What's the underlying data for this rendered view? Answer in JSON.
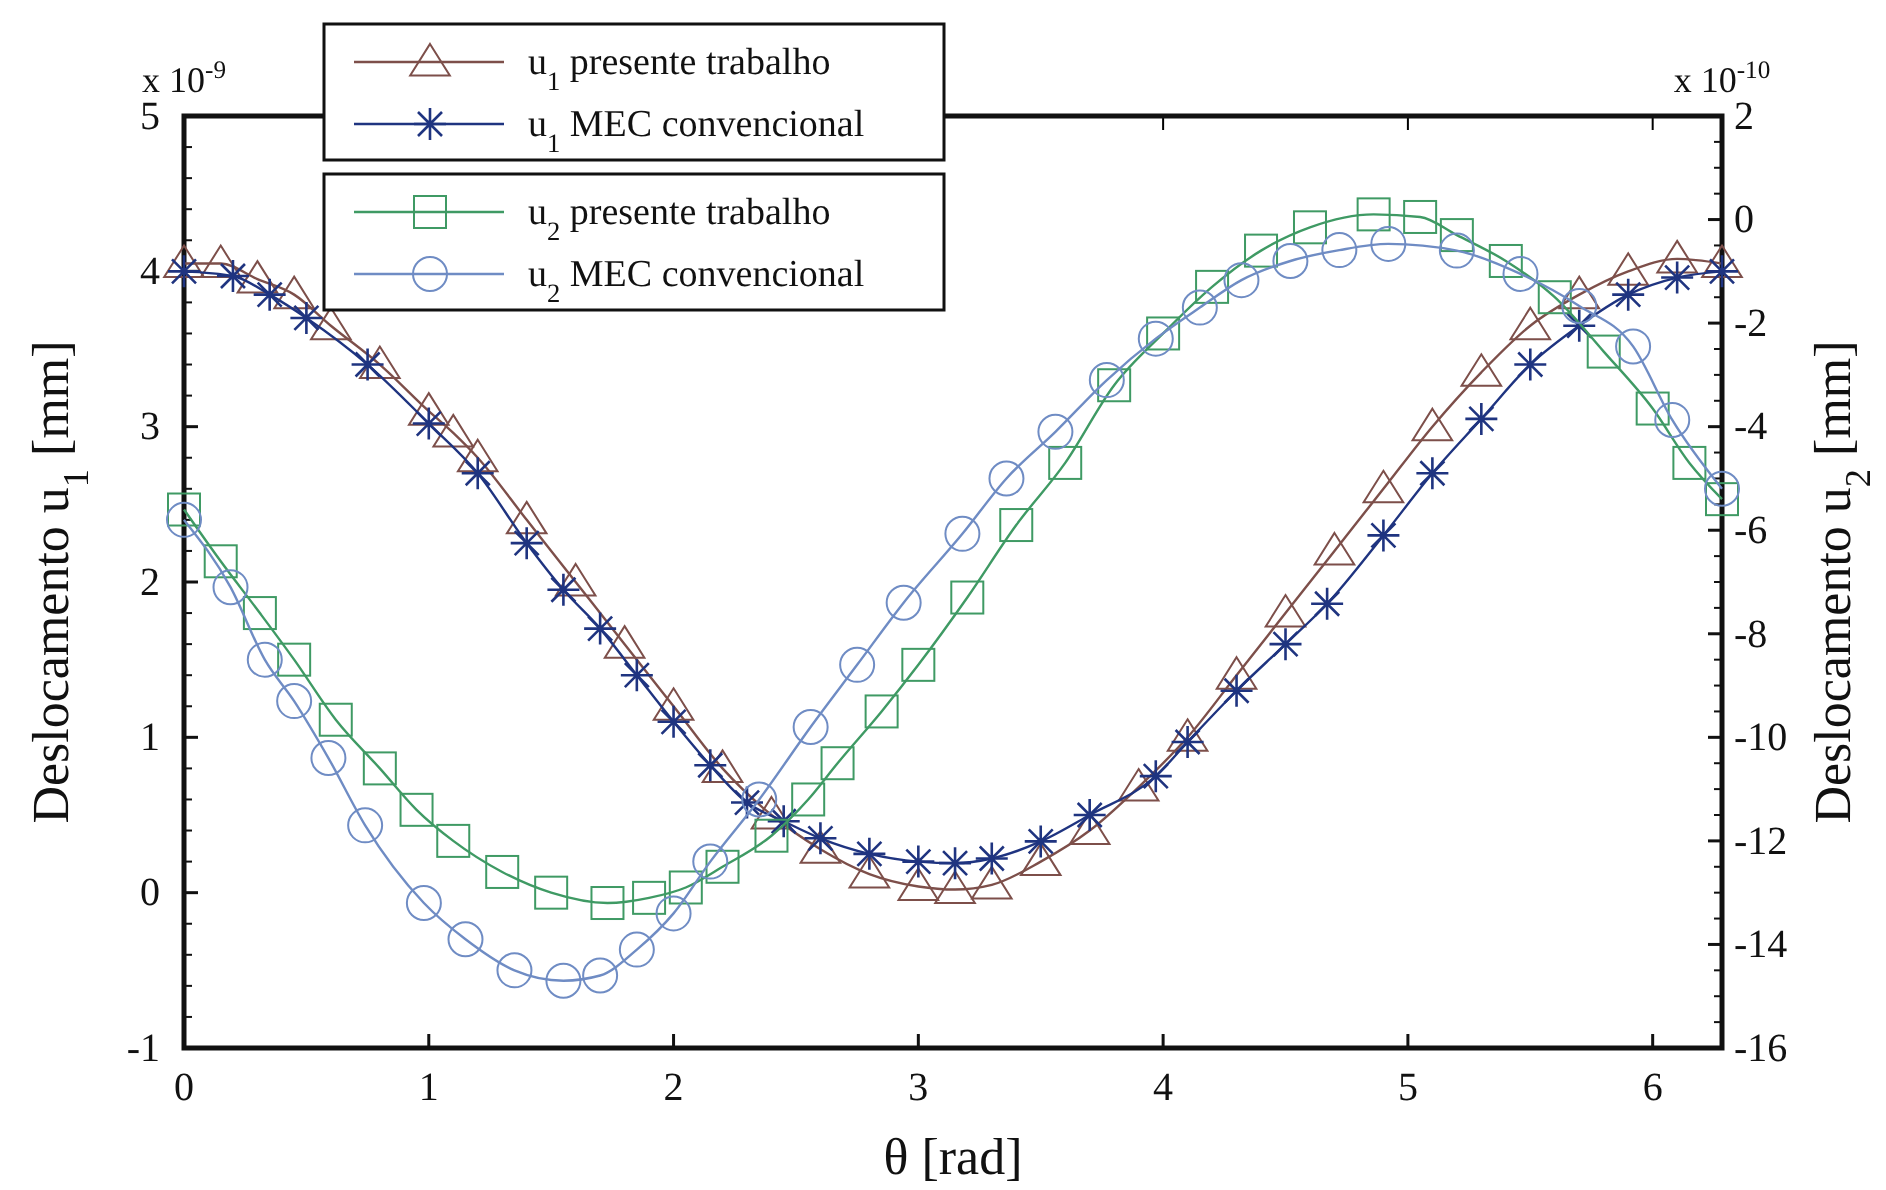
{
  "chart_data": {
    "type": "line",
    "xlabel": "θ [rad]",
    "ylabel": "Deslocamento u$_{1}$ [mm]",
    "y2label": "Deslocamento u$_{2}$ [mm]",
    "annotations": [
      "x 10$^{-9}$",
      "x 10$^{-10}$"
    ],
    "xlim": [
      0,
      6.2832
    ],
    "xticks": [
      0,
      1,
      2,
      3,
      4,
      5,
      6
    ],
    "ylim": [
      -1,
      5
    ],
    "yticks": [
      -1,
      0,
      1,
      2,
      3,
      4,
      5
    ],
    "y2lim": [
      -16,
      2
    ],
    "y2ticks": [
      -16,
      -14,
      -12,
      -10,
      -8,
      -6,
      -4,
      -2,
      0,
      2
    ],
    "legend": "top left",
    "grid": false,
    "line_style": "solid",
    "series": [
      {
        "name": "u$_{1}$ presente trabalho",
        "color": "#7d4f4a",
        "marker": "triangle",
        "x": [
          0,
          0.15,
          0.3,
          0.45,
          0.6,
          0.8,
          1.0,
          1.1,
          1.2,
          1.4,
          1.6,
          1.8,
          2.0,
          2.2,
          2.4,
          2.6,
          2.8,
          3.0,
          3.15,
          3.3,
          3.5,
          3.7,
          3.9,
          4.1,
          4.3,
          4.5,
          4.7,
          4.9,
          5.1,
          5.3,
          5.5,
          5.7,
          5.9,
          6.1,
          6.2832
        ],
        "values": [
          4.05,
          4.05,
          3.95,
          3.85,
          3.65,
          3.4,
          3.1,
          2.96,
          2.8,
          2.4,
          2.0,
          1.6,
          1.2,
          0.8,
          0.5,
          0.28,
          0.12,
          0.04,
          0.02,
          0.05,
          0.2,
          0.4,
          0.68,
          1.0,
          1.4,
          1.8,
          2.2,
          2.6,
          3.0,
          3.35,
          3.65,
          3.85,
          4.0,
          4.08,
          4.05
        ]
      },
      {
        "name": "u$_{1}$ MEC convencional",
        "color": "#1f3480",
        "marker": "cross",
        "x": [
          0,
          0.2,
          0.35,
          0.5,
          0.75,
          1.0,
          1.2,
          1.4,
          1.55,
          1.7,
          1.85,
          2.0,
          2.15,
          2.3,
          2.45,
          2.6,
          2.8,
          3.0,
          3.15,
          3.3,
          3.5,
          3.7,
          3.97,
          4.1,
          4.3,
          4.5,
          4.67,
          4.9,
          5.1,
          5.3,
          5.5,
          5.7,
          5.9,
          6.1,
          6.2832
        ],
        "values": [
          4.0,
          3.97,
          3.85,
          3.7,
          3.4,
          3.02,
          2.7,
          2.25,
          1.95,
          1.7,
          1.4,
          1.1,
          0.82,
          0.58,
          0.46,
          0.35,
          0.25,
          0.2,
          0.19,
          0.22,
          0.33,
          0.5,
          0.75,
          0.97,
          1.3,
          1.6,
          1.86,
          2.3,
          2.7,
          3.05,
          3.4,
          3.65,
          3.85,
          3.96,
          4.0
        ]
      },
      {
        "name": "u$_{2}$ presente trabalho",
        "color": "#3f9a64",
        "marker": "square",
        "axis": "y2",
        "x": [
          0,
          0.15,
          0.31,
          0.45,
          0.62,
          0.8,
          0.95,
          1.1,
          1.3,
          1.5,
          1.73,
          1.9,
          2.05,
          2.2,
          2.4,
          2.55,
          2.67,
          2.85,
          3.0,
          3.2,
          3.4,
          3.6,
          3.8,
          4.0,
          4.2,
          4.4,
          4.6,
          4.86,
          5.05,
          5.2,
          5.4,
          5.6,
          5.8,
          6.0,
          6.15,
          6.2832
        ],
        "values": [
          -5.6,
          -6.6,
          -7.6,
          -8.5,
          -9.66,
          -10.6,
          -11.4,
          -12.0,
          -12.6,
          -13.0,
          -13.2,
          -13.1,
          -12.9,
          -12.5,
          -11.9,
          -11.2,
          -10.5,
          -9.5,
          -8.6,
          -7.3,
          -5.9,
          -4.7,
          -3.2,
          -2.2,
          -1.3,
          -0.6,
          -0.15,
          0.1,
          0.05,
          -0.3,
          -0.8,
          -1.5,
          -2.55,
          -3.65,
          -4.7,
          -5.4
        ]
      },
      {
        "name": "u$_{2}$ MEC convencional",
        "color": "#6f8cc4",
        "marker": "circle",
        "axis": "y2",
        "x": [
          0,
          0.19,
          0.33,
          0.45,
          0.59,
          0.74,
          0.98,
          1.15,
          1.35,
          1.55,
          1.7,
          1.85,
          2.0,
          2.15,
          2.35,
          2.56,
          2.75,
          2.94,
          3.18,
          3.36,
          3.56,
          3.77,
          3.97,
          4.15,
          4.32,
          4.52,
          4.72,
          4.92,
          5.2,
          5.46,
          5.7,
          5.92,
          6.08,
          6.2832
        ],
        "values": [
          -5.8,
          -7.1,
          -8.5,
          -9.3,
          -10.4,
          -11.7,
          -13.2,
          -13.9,
          -14.5,
          -14.7,
          -14.6,
          -14.1,
          -13.4,
          -12.4,
          -11.2,
          -9.8,
          -8.6,
          -7.4,
          -6.07,
          -5.0,
          -4.1,
          -3.1,
          -2.3,
          -1.7,
          -1.17,
          -0.8,
          -0.59,
          -0.47,
          -0.6,
          -1.05,
          -1.67,
          -2.45,
          -3.87,
          -5.2
        ]
      }
    ]
  }
}
